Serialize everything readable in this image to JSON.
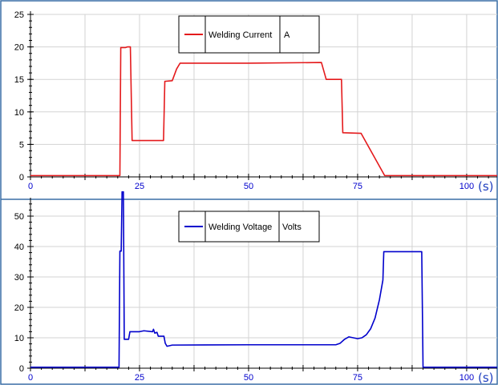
{
  "colors": {
    "frame": "#3a6ea5",
    "grid": "#d3d3d3",
    "axis_text": "#000000",
    "x_tick_text": "#0000cc",
    "unit_text": "#1f3fbf"
  },
  "chart_data": [
    {
      "type": "line",
      "title": "",
      "xlabel": "",
      "ylabel": "",
      "x_unit_label": "(s)",
      "xlim": [
        0,
        107
      ],
      "ylim": [
        0,
        25
      ],
      "x_ticks": [
        0,
        25,
        50,
        75,
        100
      ],
      "x_tick_labels": [
        "0",
        "25",
        "50",
        "75",
        "100"
      ],
      "y_ticks": [
        0,
        5,
        10,
        15,
        20,
        25
      ],
      "y_tick_labels": [
        "0",
        "5",
        "10",
        "15",
        "20",
        "25"
      ],
      "grid": true,
      "legend": {
        "placement": "top-center",
        "quantity": "Welding Current",
        "unit": "A"
      },
      "series": [
        {
          "name": "Welding Current",
          "color": "#e41a1c",
          "points": [
            [
              0,
              0.2
            ],
            [
              20.5,
              0.2
            ],
            [
              20.7,
              19.9
            ],
            [
              21.8,
              19.9
            ],
            [
              22.2,
              20.0
            ],
            [
              22.9,
              20.0
            ],
            [
              23.3,
              5.6
            ],
            [
              30.5,
              5.6
            ],
            [
              30.8,
              14.7
            ],
            [
              32.5,
              14.8
            ],
            [
              33.5,
              16.6
            ],
            [
              34.3,
              17.5
            ],
            [
              50,
              17.5
            ],
            [
              66.7,
              17.6
            ],
            [
              67.8,
              15.0
            ],
            [
              71.3,
              15.0
            ],
            [
              71.6,
              6.8
            ],
            [
              75.8,
              6.7
            ],
            [
              81.2,
              0.2
            ],
            [
              107,
              0.2
            ]
          ]
        }
      ]
    },
    {
      "type": "line",
      "title": "",
      "xlabel": "",
      "ylabel": "",
      "x_unit_label": "(s)",
      "xlim": [
        0,
        107
      ],
      "ylim": [
        0,
        55
      ],
      "x_ticks": [
        0,
        25,
        50,
        75,
        100
      ],
      "x_tick_labels": [
        "0",
        "25",
        "50",
        "75",
        "100"
      ],
      "y_ticks": [
        0,
        10,
        20,
        30,
        40,
        50
      ],
      "y_tick_labels": [
        "0",
        "10",
        "20",
        "30",
        "40",
        "50"
      ],
      "grid": true,
      "legend": {
        "placement": "top-center",
        "quantity": "Welding Voltage",
        "unit": "Volts"
      },
      "series": [
        {
          "name": "Welding Voltage",
          "color": "#0000cc",
          "points": [
            [
              0,
              0.3
            ],
            [
              20.3,
              0.3
            ],
            [
              20.5,
              38.5
            ],
            [
              20.8,
              38.5
            ],
            [
              21.0,
              58
            ],
            [
              21.3,
              58
            ],
            [
              21.5,
              9.5
            ],
            [
              22.5,
              9.5
            ],
            [
              22.8,
              12.0
            ],
            [
              25,
              12.0
            ],
            [
              26.0,
              12.3
            ],
            [
              28.0,
              12.0
            ],
            [
              28.2,
              12.8
            ],
            [
              28.5,
              11.5
            ],
            [
              29.0,
              11.8
            ],
            [
              29.3,
              10.5
            ],
            [
              30.6,
              10.5
            ],
            [
              30.9,
              8.2
            ],
            [
              31.3,
              7.2
            ],
            [
              32.5,
              7.6
            ],
            [
              50,
              7.7
            ],
            [
              70.0,
              7.7
            ],
            [
              71.0,
              8.2
            ],
            [
              72.0,
              9.5
            ],
            [
              73.0,
              10.3
            ],
            [
              74.0,
              10.0
            ],
            [
              75.0,
              9.7
            ],
            [
              76.0,
              10.0
            ],
            [
              77.0,
              11.0
            ],
            [
              78.0,
              13.0
            ],
            [
              79.0,
              16.5
            ],
            [
              80.0,
              22.5
            ],
            [
              80.8,
              29.0
            ],
            [
              81.0,
              38.3
            ],
            [
              88.5,
              38.3
            ],
            [
              89.7,
              38.3
            ],
            [
              90.0,
              0.3
            ],
            [
              107,
              0.3
            ]
          ]
        }
      ]
    }
  ]
}
